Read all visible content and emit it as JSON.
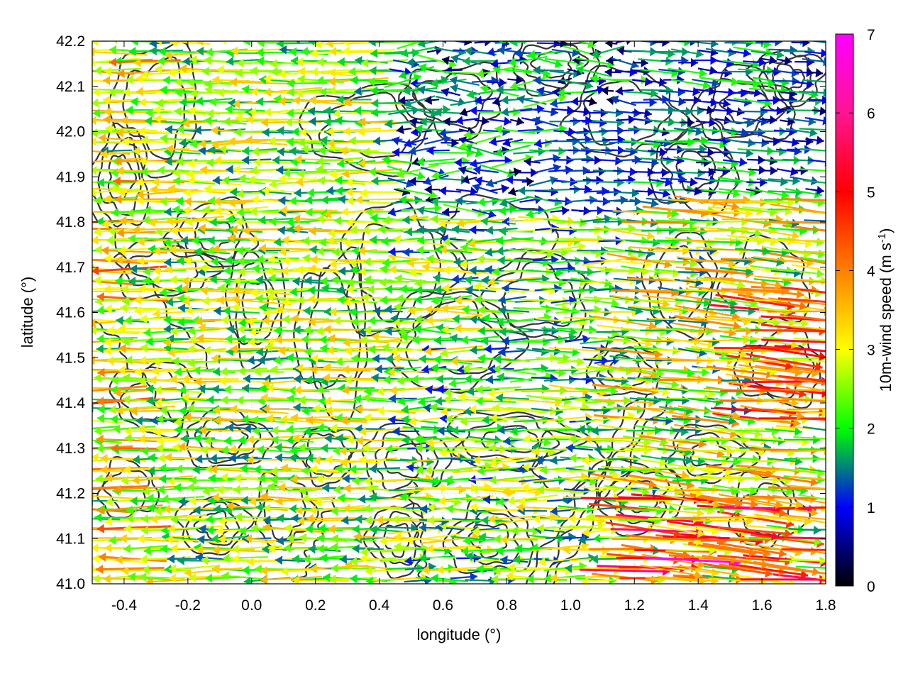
{
  "chart_data": {
    "type": "vector-field",
    "xlabel": "longitude (°)",
    "ylabel": "latitude (°)",
    "xlim": [
      -0.5,
      1.8
    ],
    "ylim": [
      41.0,
      42.2
    ],
    "x_ticks": [
      "-0.4",
      "-0.2",
      "0.0",
      "0.2",
      "0.4",
      "0.6",
      "0.8",
      "1.0",
      "1.2",
      "1.4",
      "1.6",
      "1.8"
    ],
    "y_ticks": [
      "41.0",
      "41.1",
      "41.2",
      "41.3",
      "41.4",
      "41.5",
      "41.6",
      "41.7",
      "41.8",
      "41.9",
      "42.0",
      "42.1",
      "42.2"
    ],
    "grid": true,
    "colorbar": {
      "label_main": "10m-wind speed (m s",
      "label_exp": "-1",
      "label_close": ")",
      "range": [
        0,
        7
      ],
      "ticks": [
        "0",
        "1",
        "2",
        "3",
        "4",
        "5",
        "6",
        "7"
      ],
      "colors": [
        "#000000",
        "#0000ff",
        "#00ff00",
        "#ffff00",
        "#ff8000",
        "#ff0000",
        "#ff00ff"
      ]
    },
    "contour_color": "#333333",
    "wind_regions": [
      {
        "region": "west",
        "lon_range": [
          -0.5,
          0.45
        ],
        "direction": "westward",
        "speed_range": [
          1.5,
          5.5
        ]
      },
      {
        "region": "center-north",
        "lon_range": [
          0.45,
          1.2
        ],
        "lat_range": [
          41.8,
          42.2
        ],
        "direction": "variable",
        "speed_range": [
          0.5,
          3
        ]
      },
      {
        "region": "center-east",
        "lon_range": [
          0.9,
          1.35
        ],
        "lat_range": [
          41.85,
          42.05
        ],
        "direction": "eastward",
        "speed_range": [
          1,
          2
        ]
      },
      {
        "region": "east",
        "lon_range": [
          1.2,
          1.8
        ],
        "direction": "eastward",
        "speed_range": [
          2,
          7
        ]
      }
    ]
  }
}
